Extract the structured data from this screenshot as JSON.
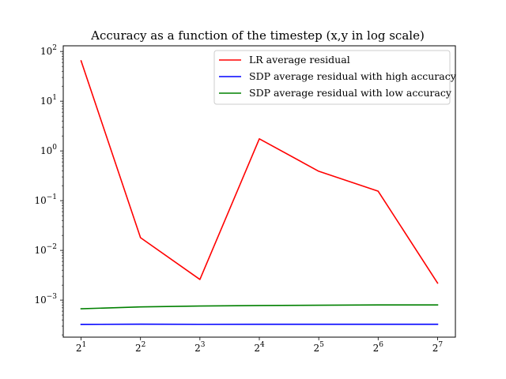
{
  "chart_data": {
    "type": "line",
    "title": "Accuracy as a function of the timestep (x,y in log scale)",
    "xlabel": "",
    "ylabel": "",
    "x_scale": "log2",
    "y_scale": "log10",
    "x": [
      2,
      4,
      8,
      16,
      32,
      64,
      128
    ],
    "x_tick_labels": [
      {
        "base": "2",
        "exp": "1"
      },
      {
        "base": "2",
        "exp": "2"
      },
      {
        "base": "2",
        "exp": "3"
      },
      {
        "base": "2",
        "exp": "4"
      },
      {
        "base": "2",
        "exp": "5"
      },
      {
        "base": "2",
        "exp": "6"
      },
      {
        "base": "2",
        "exp": "7"
      }
    ],
    "y_tick_labels": [
      {
        "value": 0.001,
        "base": "10",
        "exp": "−3"
      },
      {
        "value": 0.01,
        "base": "10",
        "exp": "−2"
      },
      {
        "value": 0.1,
        "base": "10",
        "exp": "−1"
      },
      {
        "value": 1,
        "base": "10",
        "exp": "0"
      },
      {
        "value": 10,
        "base": "10",
        "exp": "1"
      },
      {
        "value": 100,
        "base": "10",
        "exp": "2"
      }
    ],
    "ylim": [
      0.00018,
      130
    ],
    "legend_position": "upper right",
    "grid": false,
    "series": [
      {
        "name": "LR average residual",
        "color": "#ff0000",
        "values": [
          65,
          0.018,
          0.0026,
          1.75,
          0.39,
          0.155,
          0.0022
        ]
      },
      {
        "name": "SDP average residual with high accuracy",
        "color": "#0000ff",
        "values": [
          0.000325,
          0.000328,
          0.000326,
          0.000327,
          0.000327,
          0.000327,
          0.000327
        ]
      },
      {
        "name": "SDP average residual with low accuracy",
        "color": "#008000",
        "values": [
          0.00067,
          0.00073,
          0.00076,
          0.00078,
          0.00079,
          0.0008,
          0.0008
        ]
      }
    ]
  }
}
